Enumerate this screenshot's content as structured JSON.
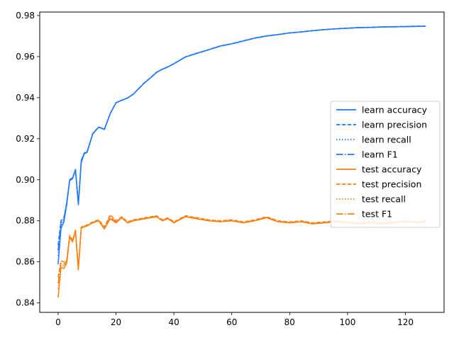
{
  "chart_data": {
    "type": "line",
    "title": "",
    "xlabel": "",
    "ylabel": "",
    "xlim": [
      -6.35,
      133.35
    ],
    "ylim": [
      0.8354,
      0.9817
    ],
    "x_ticks": [
      0,
      20,
      40,
      60,
      80,
      100,
      120
    ],
    "y_ticks": [
      0.84,
      0.86,
      0.88,
      0.9,
      0.92,
      0.94,
      0.96,
      0.98
    ],
    "x_tick_labels": [
      "0",
      "20",
      "40",
      "60",
      "80",
      "100",
      "120"
    ],
    "y_tick_labels": [
      "0.84",
      "0.86",
      "0.88",
      "0.90",
      "0.92",
      "0.94",
      "0.96",
      "0.98"
    ],
    "grid": false,
    "legend_position": "center-right",
    "colors": {
      "learn": "#1f77ff",
      "test": "#ff7f0e"
    },
    "x": [
      0,
      1,
      2,
      3,
      4,
      5,
      6,
      7,
      8,
      9,
      10,
      12,
      14,
      16,
      18,
      20,
      22,
      24,
      26,
      28,
      30,
      32,
      34,
      36,
      38,
      40,
      44,
      48,
      52,
      56,
      60,
      64,
      68,
      72,
      76,
      80,
      84,
      88,
      92,
      96,
      100,
      104,
      108,
      112,
      116,
      120,
      124,
      127
    ],
    "series": [
      {
        "name": "learn accuracy",
        "line_style": "solid",
        "values": [
          0.8588,
          0.8763,
          0.8795,
          0.8881,
          0.8996,
          0.9005,
          0.9048,
          0.8878,
          0.9084,
          0.9126,
          0.9133,
          0.9224,
          0.9256,
          0.9245,
          0.9322,
          0.9375,
          0.9387,
          0.9398,
          0.9417,
          0.9446,
          0.9474,
          0.9497,
          0.9523,
          0.9538,
          0.955,
          0.9565,
          0.9598,
          0.9616,
          0.9633,
          0.9651,
          0.9662,
          0.9676,
          0.969,
          0.97,
          0.9707,
          0.9715,
          0.972,
          0.9726,
          0.9731,
          0.9735,
          0.9738,
          0.9741,
          0.9742,
          0.9744,
          0.9745,
          0.9746,
          0.9747,
          0.9748
        ]
      },
      {
        "name": "learn precision",
        "line_style": "dashed",
        "values": [
          0.8682,
          0.8801,
          0.8815,
          0.8891,
          0.9001,
          0.901,
          0.905,
          0.8885,
          0.9095,
          0.913,
          0.9136,
          0.9226,
          0.9257,
          0.9247,
          0.9323,
          0.9376,
          0.9388,
          0.9399,
          0.9418,
          0.9447,
          0.9475,
          0.9498,
          0.9524,
          0.9539,
          0.9551,
          0.9566,
          0.9599,
          0.9617,
          0.9634,
          0.9652,
          0.9663,
          0.9677,
          0.9691,
          0.9701,
          0.9708,
          0.9716,
          0.9721,
          0.9727,
          0.9732,
          0.9736,
          0.9739,
          0.9742,
          0.9743,
          0.9745,
          0.9746,
          0.9747,
          0.9748,
          0.9749
        ]
      },
      {
        "name": "learn recall",
        "line_style": "dotted",
        "values": [
          0.863,
          0.878,
          0.88,
          0.8885,
          0.8998,
          0.9007,
          0.9049,
          0.8881,
          0.909,
          0.9128,
          0.9134,
          0.9225,
          0.9256,
          0.9246,
          0.9322,
          0.9375,
          0.9387,
          0.9398,
          0.9417,
          0.9446,
          0.9474,
          0.9497,
          0.9523,
          0.9538,
          0.955,
          0.9565,
          0.9598,
          0.9616,
          0.9633,
          0.9651,
          0.9662,
          0.9676,
          0.969,
          0.97,
          0.9707,
          0.9715,
          0.972,
          0.9726,
          0.9731,
          0.9735,
          0.9738,
          0.9741,
          0.9742,
          0.9744,
          0.9745,
          0.9746,
          0.9747,
          0.9748
        ]
      },
      {
        "name": "learn F1",
        "line_style": "dashdot",
        "values": [
          0.8655,
          0.879,
          0.8808,
          0.8888,
          0.8999,
          0.9008,
          0.9049,
          0.8883,
          0.9092,
          0.9129,
          0.9135,
          0.9225,
          0.9256,
          0.9246,
          0.9322,
          0.9375,
          0.9387,
          0.9398,
          0.9417,
          0.9446,
          0.9474,
          0.9497,
          0.9523,
          0.9538,
          0.955,
          0.9565,
          0.9598,
          0.9616,
          0.9633,
          0.9651,
          0.9662,
          0.9676,
          0.969,
          0.97,
          0.9707,
          0.9715,
          0.972,
          0.9726,
          0.9731,
          0.9735,
          0.9738,
          0.9741,
          0.9742,
          0.9744,
          0.9745,
          0.9746,
          0.9747,
          0.9748
        ]
      },
      {
        "name": "test accuracy",
        "line_style": "solid",
        "values": [
          0.8426,
          0.8573,
          0.8568,
          0.8595,
          0.872,
          0.8697,
          0.875,
          0.8561,
          0.8765,
          0.877,
          0.8775,
          0.879,
          0.88,
          0.876,
          0.881,
          0.879,
          0.8815,
          0.879,
          0.88,
          0.8805,
          0.881,
          0.8815,
          0.882,
          0.88,
          0.881,
          0.879,
          0.882,
          0.881,
          0.88,
          0.8795,
          0.88,
          0.879,
          0.88,
          0.8815,
          0.8795,
          0.879,
          0.8795,
          0.8785,
          0.879,
          0.8795,
          0.879,
          0.8785,
          0.879,
          0.8785,
          0.879,
          0.8795,
          0.879,
          0.8795
        ]
      },
      {
        "name": "test precision",
        "line_style": "dashed",
        "values": [
          0.8525,
          0.8605,
          0.86,
          0.861,
          0.873,
          0.8705,
          0.8755,
          0.8575,
          0.877,
          0.8775,
          0.878,
          0.8795,
          0.8805,
          0.877,
          0.883,
          0.88,
          0.882,
          0.8795,
          0.8805,
          0.881,
          0.8815,
          0.882,
          0.8825,
          0.8805,
          0.8815,
          0.8795,
          0.8825,
          0.8815,
          0.8805,
          0.88,
          0.8805,
          0.8795,
          0.8805,
          0.882,
          0.88,
          0.8795,
          0.88,
          0.879,
          0.8795,
          0.88,
          0.8795,
          0.879,
          0.8795,
          0.879,
          0.8795,
          0.88,
          0.8795,
          0.88
        ]
      },
      {
        "name": "test recall",
        "line_style": "dotted",
        "values": [
          0.847,
          0.8585,
          0.858,
          0.86,
          0.8722,
          0.8699,
          0.8751,
          0.8565,
          0.8766,
          0.8771,
          0.8776,
          0.8791,
          0.8801,
          0.8763,
          0.8815,
          0.8793,
          0.8816,
          0.8791,
          0.8801,
          0.8806,
          0.8811,
          0.8816,
          0.8821,
          0.8801,
          0.8811,
          0.8791,
          0.8821,
          0.8811,
          0.8801,
          0.8796,
          0.8801,
          0.8791,
          0.8801,
          0.8816,
          0.8796,
          0.8791,
          0.8796,
          0.8786,
          0.8791,
          0.8796,
          0.8791,
          0.8786,
          0.8791,
          0.8786,
          0.8791,
          0.8796,
          0.8791,
          0.8796
        ]
      },
      {
        "name": "test F1",
        "line_style": "dashdot",
        "values": [
          0.8495,
          0.8592,
          0.8588,
          0.8604,
          0.8725,
          0.8701,
          0.8752,
          0.8568,
          0.8767,
          0.8772,
          0.8777,
          0.8792,
          0.8802,
          0.8765,
          0.882,
          0.8795,
          0.8817,
          0.8792,
          0.8802,
          0.8807,
          0.8812,
          0.8817,
          0.8822,
          0.8802,
          0.8812,
          0.8792,
          0.8822,
          0.8812,
          0.8802,
          0.8797,
          0.8802,
          0.8792,
          0.8802,
          0.8817,
          0.8797,
          0.8792,
          0.8797,
          0.8787,
          0.8792,
          0.8797,
          0.8792,
          0.8787,
          0.8792,
          0.8787,
          0.8792,
          0.8797,
          0.8792,
          0.8797
        ]
      }
    ]
  }
}
